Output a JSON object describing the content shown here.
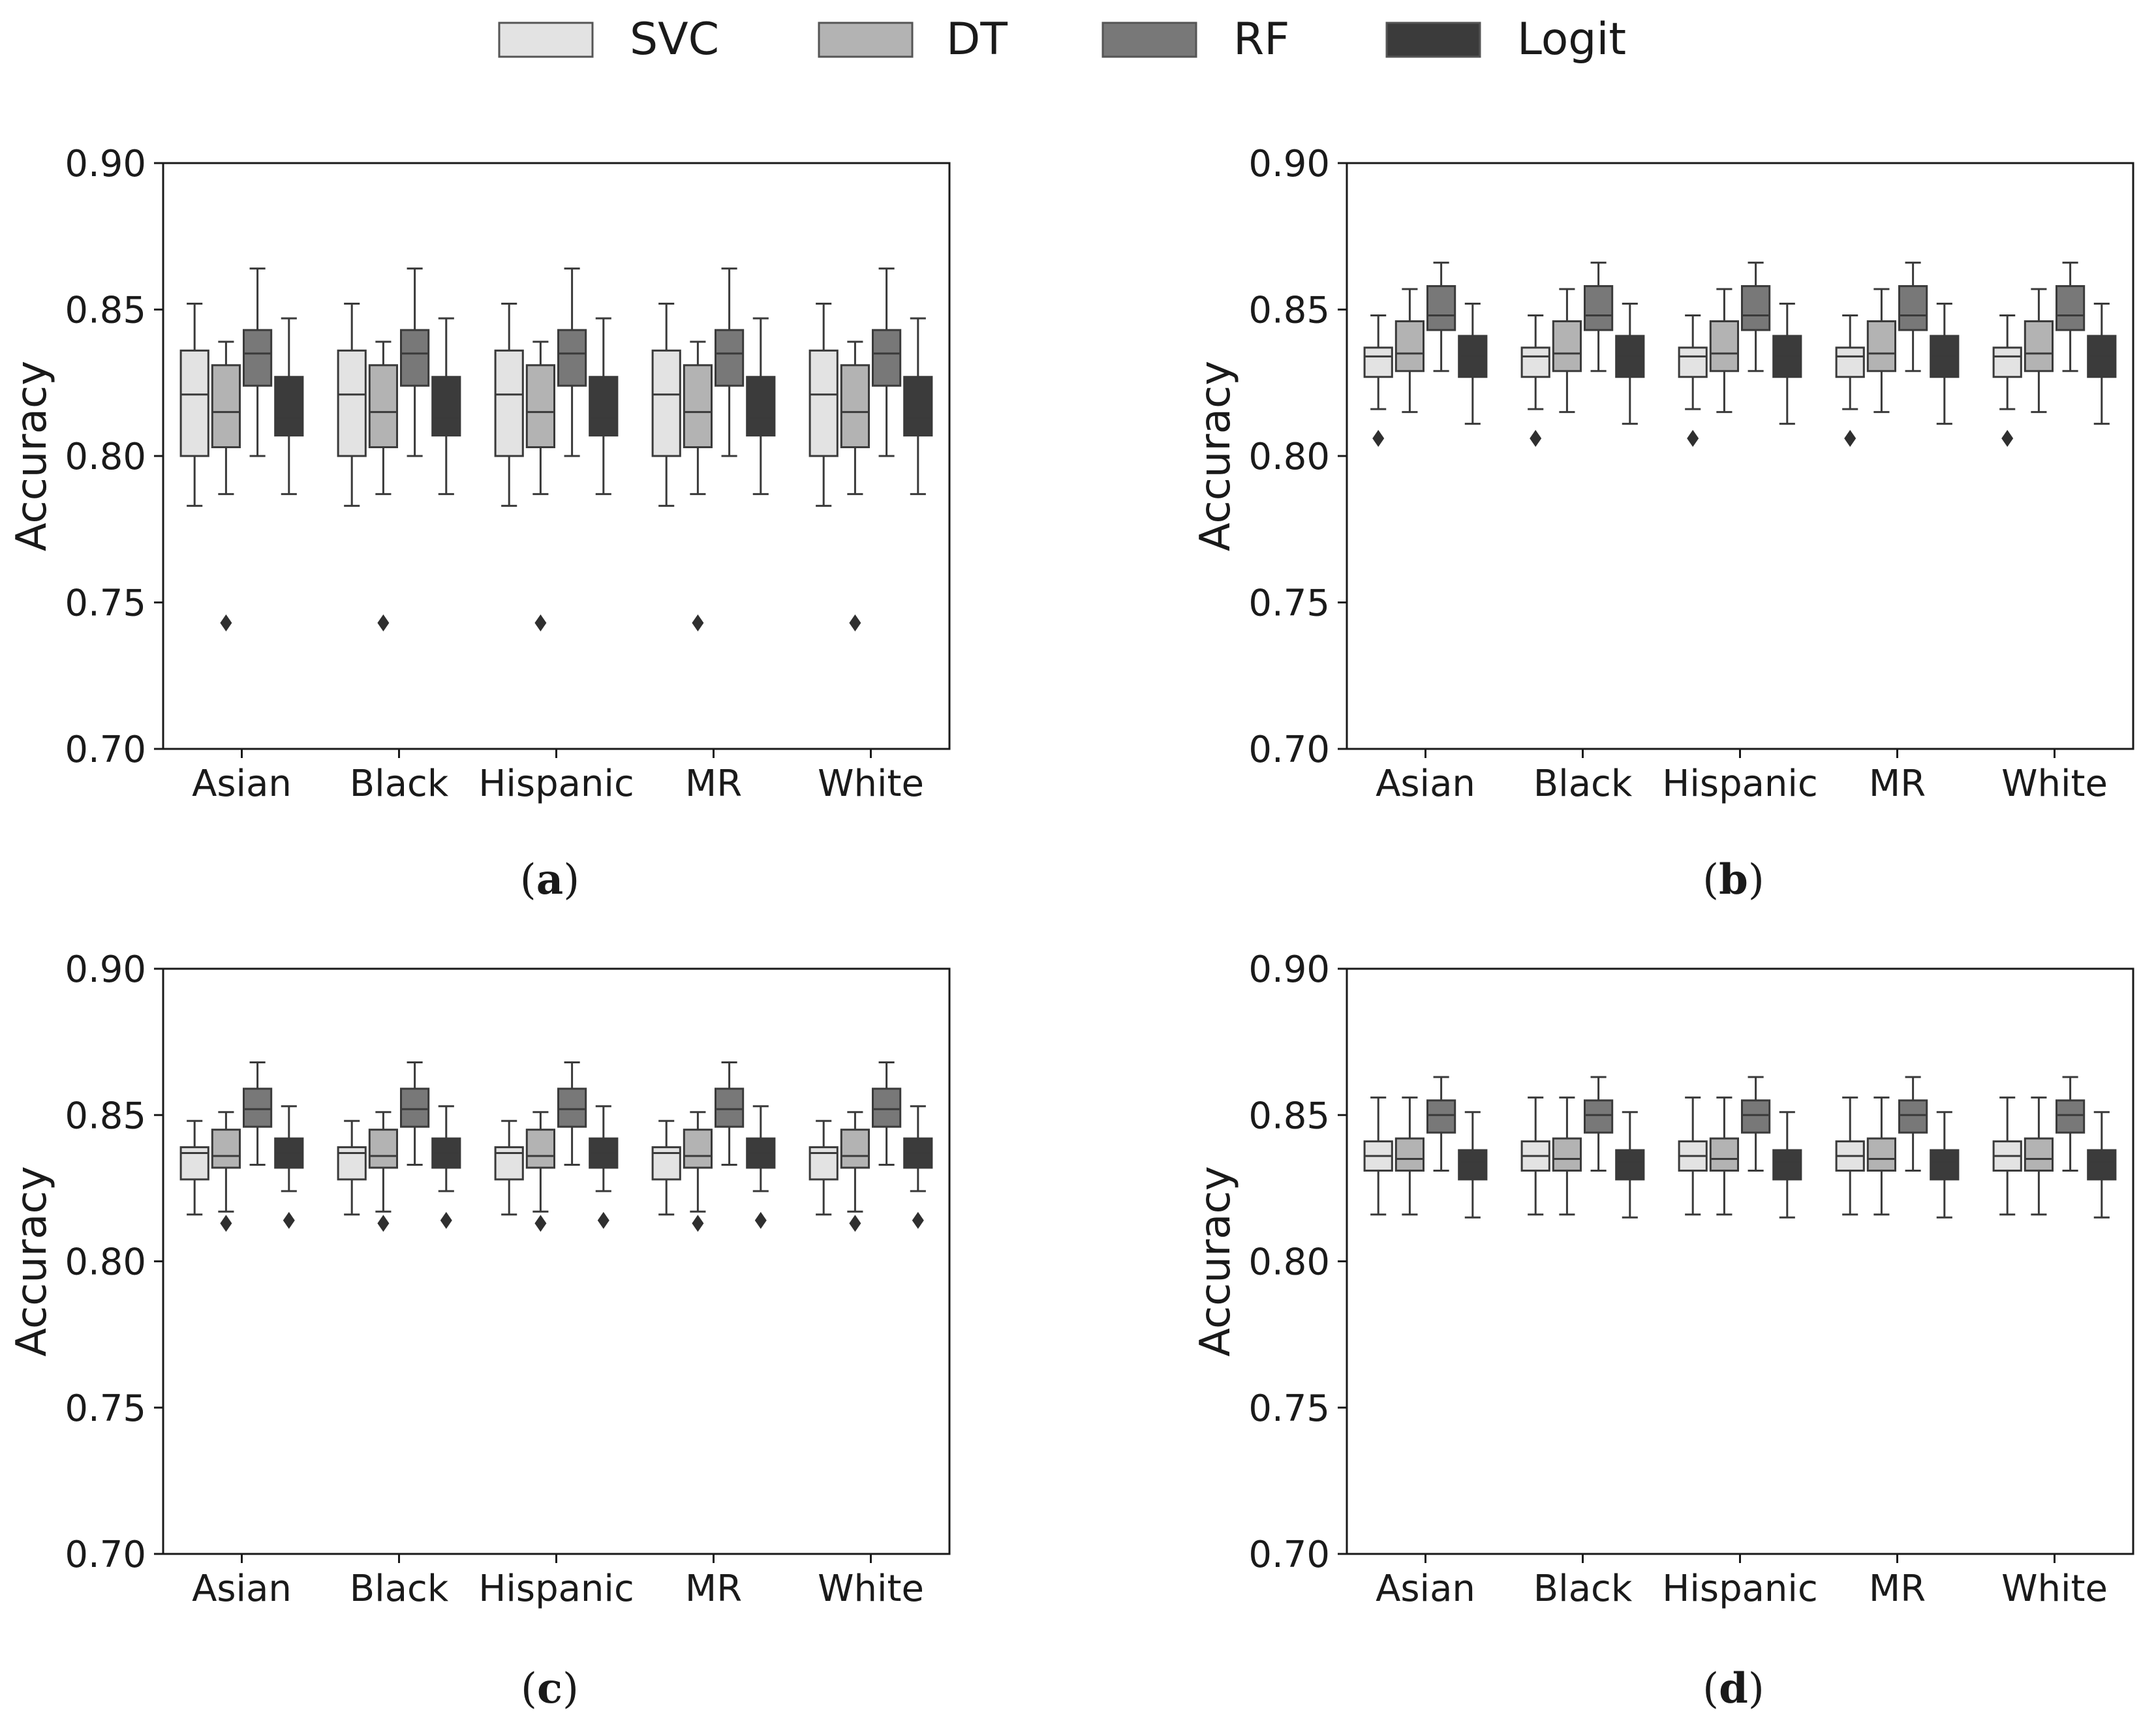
{
  "legend": {
    "items": [
      {
        "label": "SVC",
        "color": "#e3e3e3"
      },
      {
        "label": "DT",
        "color": "#b3b3b3"
      },
      {
        "label": "RF",
        "color": "#787878"
      },
      {
        "label": "Logit",
        "color": "#3b3b3b"
      }
    ]
  },
  "chart_data": [
    {
      "type": "boxplot",
      "panel": "a",
      "caption": {
        "open": "(",
        "letter": "a",
        "close": ")"
      },
      "ylabel": "Accuracy",
      "xlabel": "",
      "ylim": [
        0.7,
        0.9
      ],
      "yticks": [
        "0.70",
        "0.75",
        "0.80",
        "0.85",
        "0.90"
      ],
      "categories": [
        "Asian",
        "Black",
        "Hispanic",
        "MR",
        "White"
      ],
      "series": [
        {
          "name": "SVC",
          "box": {
            "whislo": 0.783,
            "q1": 0.8,
            "med": 0.821,
            "q3": 0.836,
            "whishi": 0.852
          },
          "fliers": []
        },
        {
          "name": "DT",
          "box": {
            "whislo": 0.787,
            "q1": 0.803,
            "med": 0.815,
            "q3": 0.831,
            "whishi": 0.839
          },
          "fliers": [
            0.743
          ]
        },
        {
          "name": "RF",
          "box": {
            "whislo": 0.8,
            "q1": 0.824,
            "med": 0.835,
            "q3": 0.843,
            "whishi": 0.864
          },
          "fliers": []
        },
        {
          "name": "Logit",
          "box": {
            "whislo": 0.787,
            "q1": 0.807,
            "med": 0.813,
            "q3": 0.827,
            "whishi": 0.847
          },
          "fliers": []
        }
      ]
    },
    {
      "type": "boxplot",
      "panel": "b",
      "caption": {
        "open": "(",
        "letter": "b",
        "close": ")"
      },
      "ylabel": "Accuracy",
      "xlabel": "",
      "ylim": [
        0.7,
        0.9
      ],
      "yticks": [
        "0.70",
        "0.75",
        "0.80",
        "0.85",
        "0.90"
      ],
      "categories": [
        "Asian",
        "Black",
        "Hispanic",
        "MR",
        "White"
      ],
      "series": [
        {
          "name": "SVC",
          "box": {
            "whislo": 0.816,
            "q1": 0.827,
            "med": 0.834,
            "q3": 0.837,
            "whishi": 0.848
          },
          "fliers": [
            0.806
          ]
        },
        {
          "name": "DT",
          "box": {
            "whislo": 0.815,
            "q1": 0.829,
            "med": 0.835,
            "q3": 0.846,
            "whishi": 0.857
          },
          "fliers": []
        },
        {
          "name": "RF",
          "box": {
            "whislo": 0.829,
            "q1": 0.843,
            "med": 0.848,
            "q3": 0.858,
            "whishi": 0.866
          },
          "fliers": []
        },
        {
          "name": "Logit",
          "box": {
            "whislo": 0.811,
            "q1": 0.827,
            "med": 0.834,
            "q3": 0.841,
            "whishi": 0.852
          },
          "fliers": []
        }
      ]
    },
    {
      "type": "boxplot",
      "panel": "c",
      "caption": {
        "open": "(",
        "letter": "c",
        "close": ")"
      },
      "ylabel": "Accuracy",
      "xlabel": "",
      "ylim": [
        0.7,
        0.9
      ],
      "yticks": [
        "0.70",
        "0.75",
        "0.80",
        "0.85",
        "0.90"
      ],
      "categories": [
        "Asian",
        "Black",
        "Hispanic",
        "MR",
        "White"
      ],
      "series": [
        {
          "name": "SVC",
          "box": {
            "whislo": 0.816,
            "q1": 0.828,
            "med": 0.837,
            "q3": 0.839,
            "whishi": 0.848
          },
          "fliers": []
        },
        {
          "name": "DT",
          "box": {
            "whislo": 0.817,
            "q1": 0.832,
            "med": 0.836,
            "q3": 0.845,
            "whishi": 0.851
          },
          "fliers": [
            0.813
          ]
        },
        {
          "name": "RF",
          "box": {
            "whislo": 0.833,
            "q1": 0.846,
            "med": 0.852,
            "q3": 0.859,
            "whishi": 0.868
          },
          "fliers": []
        },
        {
          "name": "Logit",
          "box": {
            "whislo": 0.824,
            "q1": 0.832,
            "med": 0.837,
            "q3": 0.842,
            "whishi": 0.853
          },
          "fliers": [
            0.814
          ]
        }
      ]
    },
    {
      "type": "boxplot",
      "panel": "d",
      "caption": {
        "open": "(",
        "letter": "d",
        "close": ")"
      },
      "ylabel": "Accuracy",
      "xlabel": "",
      "ylim": [
        0.7,
        0.9
      ],
      "yticks": [
        "0.70",
        "0.75",
        "0.80",
        "0.85",
        "0.90"
      ],
      "categories": [
        "Asian",
        "Black",
        "Hispanic",
        "MR",
        "White"
      ],
      "series": [
        {
          "name": "SVC",
          "box": {
            "whislo": 0.816,
            "q1": 0.831,
            "med": 0.836,
            "q3": 0.841,
            "whishi": 0.856
          },
          "fliers": []
        },
        {
          "name": "DT",
          "box": {
            "whislo": 0.816,
            "q1": 0.831,
            "med": 0.835,
            "q3": 0.842,
            "whishi": 0.856
          },
          "fliers": []
        },
        {
          "name": "RF",
          "box": {
            "whislo": 0.831,
            "q1": 0.844,
            "med": 0.85,
            "q3": 0.855,
            "whishi": 0.863
          },
          "fliers": []
        },
        {
          "name": "Logit",
          "box": {
            "whislo": 0.815,
            "q1": 0.828,
            "med": 0.834,
            "q3": 0.838,
            "whishi": 0.851
          },
          "fliers": []
        }
      ]
    }
  ]
}
